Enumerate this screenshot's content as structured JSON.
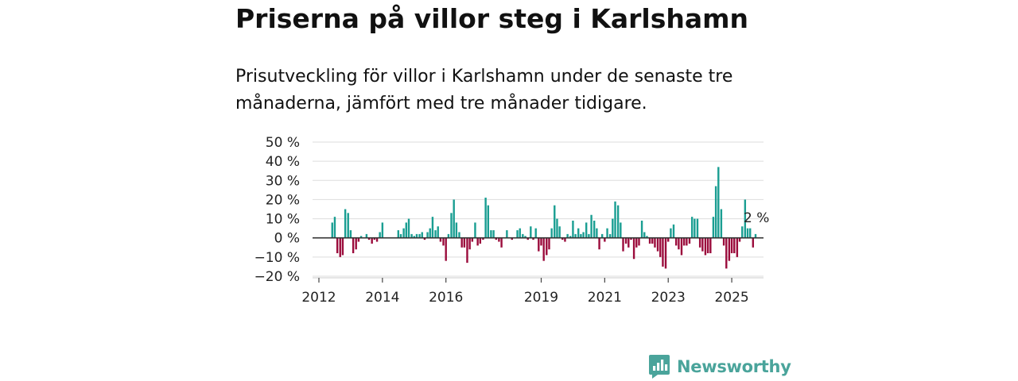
{
  "title": "Priserna på villor steg i Karlshamn",
  "subtitle": "Prisutveckling för villor i Karlshamn under de senaste tre månaderna, jämfört med tre månader tidigare.",
  "brand": {
    "name": "Newsworthy",
    "color": "#4aa49b"
  },
  "colors": {
    "positive": "#1a9e92",
    "negative": "#9b0c3c",
    "grid": "#dddddd",
    "zero_line": "#333333"
  },
  "chart_data": {
    "type": "bar",
    "title": "Priserna på villor steg i Karlshamn",
    "xlabel": "",
    "ylabel": "",
    "y_unit": "%",
    "ylim": [
      -20,
      50
    ],
    "y_ticks": [
      50,
      40,
      30,
      20,
      10,
      0,
      -10,
      -20
    ],
    "y_tick_labels": [
      "50 %",
      "40 %",
      "30 %",
      "20 %",
      "10 %",
      "0 %",
      "−10 %",
      "−20 %"
    ],
    "x_range": [
      2011.8,
      2026.0
    ],
    "x_ticks": [
      2012,
      2014,
      2016,
      2019,
      2021,
      2023,
      2025
    ],
    "x_tick_labels": [
      "2012",
      "2014",
      "2016",
      "2019",
      "2021",
      "2023",
      "2025"
    ],
    "last_value_label": "2 %",
    "series": [
      {
        "name": "Prisutveckling villor Karlshamn",
        "points": [
          {
            "x": 2012.42,
            "v": 8
          },
          {
            "x": 2012.5,
            "v": 11
          },
          {
            "x": 2012.58,
            "v": -8
          },
          {
            "x": 2012.67,
            "v": -10
          },
          {
            "x": 2012.75,
            "v": -9
          },
          {
            "x": 2012.83,
            "v": 15
          },
          {
            "x": 2012.92,
            "v": 13
          },
          {
            "x": 2013.0,
            "v": 4
          },
          {
            "x": 2013.08,
            "v": -8
          },
          {
            "x": 2013.17,
            "v": -6
          },
          {
            "x": 2013.25,
            "v": -2
          },
          {
            "x": 2013.33,
            "v": 1
          },
          {
            "x": 2013.5,
            "v": 2
          },
          {
            "x": 2013.58,
            "v": -1
          },
          {
            "x": 2013.67,
            "v": -3
          },
          {
            "x": 2013.75,
            "v": -1
          },
          {
            "x": 2013.83,
            "v": -2
          },
          {
            "x": 2013.92,
            "v": 3
          },
          {
            "x": 2014.0,
            "v": 8
          },
          {
            "x": 2014.5,
            "v": 4
          },
          {
            "x": 2014.58,
            "v": 2
          },
          {
            "x": 2014.67,
            "v": 5
          },
          {
            "x": 2014.75,
            "v": 8
          },
          {
            "x": 2014.83,
            "v": 10
          },
          {
            "x": 2014.92,
            "v": 2
          },
          {
            "x": 2015.0,
            "v": 1
          },
          {
            "x": 2015.08,
            "v": 2
          },
          {
            "x": 2015.17,
            "v": 2
          },
          {
            "x": 2015.25,
            "v": 3
          },
          {
            "x": 2015.33,
            "v": -1
          },
          {
            "x": 2015.42,
            "v": 3
          },
          {
            "x": 2015.5,
            "v": 5
          },
          {
            "x": 2015.58,
            "v": 11
          },
          {
            "x": 2015.67,
            "v": 4
          },
          {
            "x": 2015.75,
            "v": 6
          },
          {
            "x": 2015.83,
            "v": -2
          },
          {
            "x": 2015.92,
            "v": -4
          },
          {
            "x": 2016.0,
            "v": -12
          },
          {
            "x": 2016.08,
            "v": 2
          },
          {
            "x": 2016.17,
            "v": 13
          },
          {
            "x": 2016.25,
            "v": 20
          },
          {
            "x": 2016.33,
            "v": 8
          },
          {
            "x": 2016.42,
            "v": 3
          },
          {
            "x": 2016.5,
            "v": -5
          },
          {
            "x": 2016.58,
            "v": -5
          },
          {
            "x": 2016.67,
            "v": -13
          },
          {
            "x": 2016.75,
            "v": -6
          },
          {
            "x": 2016.83,
            "v": -2
          },
          {
            "x": 2016.92,
            "v": 8
          },
          {
            "x": 2017.0,
            "v": -4
          },
          {
            "x": 2017.08,
            "v": -3
          },
          {
            "x": 2017.17,
            "v": -1
          },
          {
            "x": 2017.25,
            "v": 21
          },
          {
            "x": 2017.33,
            "v": 17
          },
          {
            "x": 2017.42,
            "v": 4
          },
          {
            "x": 2017.5,
            "v": 4
          },
          {
            "x": 2017.58,
            "v": -1
          },
          {
            "x": 2017.67,
            "v": -2
          },
          {
            "x": 2017.75,
            "v": -5
          },
          {
            "x": 2017.92,
            "v": 4
          },
          {
            "x": 2018.08,
            "v": -1
          },
          {
            "x": 2018.25,
            "v": 4
          },
          {
            "x": 2018.33,
            "v": 5
          },
          {
            "x": 2018.42,
            "v": 2
          },
          {
            "x": 2018.5,
            "v": 1
          },
          {
            "x": 2018.58,
            "v": -1
          },
          {
            "x": 2018.67,
            "v": 6
          },
          {
            "x": 2018.75,
            "v": -1
          },
          {
            "x": 2018.83,
            "v": 5
          },
          {
            "x": 2018.92,
            "v": -7
          },
          {
            "x": 2019.0,
            "v": -4
          },
          {
            "x": 2019.08,
            "v": -12
          },
          {
            "x": 2019.17,
            "v": -9
          },
          {
            "x": 2019.25,
            "v": -6
          },
          {
            "x": 2019.33,
            "v": 5
          },
          {
            "x": 2019.42,
            "v": 17
          },
          {
            "x": 2019.5,
            "v": 10
          },
          {
            "x": 2019.58,
            "v": 6
          },
          {
            "x": 2019.67,
            "v": -1
          },
          {
            "x": 2019.75,
            "v": -2
          },
          {
            "x": 2019.83,
            "v": 2
          },
          {
            "x": 2019.92,
            "v": 1
          },
          {
            "x": 2020.0,
            "v": 9
          },
          {
            "x": 2020.08,
            "v": 2
          },
          {
            "x": 2020.17,
            "v": 5
          },
          {
            "x": 2020.25,
            "v": 2
          },
          {
            "x": 2020.33,
            "v": 3
          },
          {
            "x": 2020.42,
            "v": 8
          },
          {
            "x": 2020.5,
            "v": 2
          },
          {
            "x": 2020.58,
            "v": 12
          },
          {
            "x": 2020.67,
            "v": 9
          },
          {
            "x": 2020.75,
            "v": 5
          },
          {
            "x": 2020.83,
            "v": -6
          },
          {
            "x": 2020.92,
            "v": 2
          },
          {
            "x": 2021.0,
            "v": -2
          },
          {
            "x": 2021.08,
            "v": 5
          },
          {
            "x": 2021.17,
            "v": 2
          },
          {
            "x": 2021.25,
            "v": 10
          },
          {
            "x": 2021.33,
            "v": 19
          },
          {
            "x": 2021.42,
            "v": 17
          },
          {
            "x": 2021.5,
            "v": 8
          },
          {
            "x": 2021.58,
            "v": -7
          },
          {
            "x": 2021.67,
            "v": -3
          },
          {
            "x": 2021.75,
            "v": -5
          },
          {
            "x": 2021.83,
            "v": -1
          },
          {
            "x": 2021.92,
            "v": -11
          },
          {
            "x": 2022.0,
            "v": -5
          },
          {
            "x": 2022.08,
            "v": -4
          },
          {
            "x": 2022.17,
            "v": 9
          },
          {
            "x": 2022.25,
            "v": 3
          },
          {
            "x": 2022.33,
            "v": 1
          },
          {
            "x": 2022.42,
            "v": -3
          },
          {
            "x": 2022.5,
            "v": -3
          },
          {
            "x": 2022.58,
            "v": -5
          },
          {
            "x": 2022.67,
            "v": -7
          },
          {
            "x": 2022.75,
            "v": -10
          },
          {
            "x": 2022.83,
            "v": -15
          },
          {
            "x": 2022.92,
            "v": -16
          },
          {
            "x": 2023.0,
            "v": -2
          },
          {
            "x": 2023.08,
            "v": 5
          },
          {
            "x": 2023.17,
            "v": 7
          },
          {
            "x": 2023.25,
            "v": -4
          },
          {
            "x": 2023.33,
            "v": -6
          },
          {
            "x": 2023.42,
            "v": -9
          },
          {
            "x": 2023.5,
            "v": -4
          },
          {
            "x": 2023.58,
            "v": -4
          },
          {
            "x": 2023.67,
            "v": -3
          },
          {
            "x": 2023.75,
            "v": 11
          },
          {
            "x": 2023.83,
            "v": 10
          },
          {
            "x": 2023.92,
            "v": 10
          },
          {
            "x": 2024.0,
            "v": -5
          },
          {
            "x": 2024.08,
            "v": -7
          },
          {
            "x": 2024.17,
            "v": -9
          },
          {
            "x": 2024.25,
            "v": -8
          },
          {
            "x": 2024.33,
            "v": -8
          },
          {
            "x": 2024.42,
            "v": 11
          },
          {
            "x": 2024.5,
            "v": 27
          },
          {
            "x": 2024.58,
            "v": 37
          },
          {
            "x": 2024.67,
            "v": 15
          },
          {
            "x": 2024.75,
            "v": -4
          },
          {
            "x": 2024.83,
            "v": -16
          },
          {
            "x": 2024.92,
            "v": -12
          },
          {
            "x": 2025.0,
            "v": -8
          },
          {
            "x": 2025.08,
            "v": -8
          },
          {
            "x": 2025.17,
            "v": -10
          },
          {
            "x": 2025.25,
            "v": -2
          },
          {
            "x": 2025.33,
            "v": 6
          },
          {
            "x": 2025.42,
            "v": 20
          },
          {
            "x": 2025.5,
            "v": 5
          },
          {
            "x": 2025.58,
            "v": 5
          },
          {
            "x": 2025.67,
            "v": -5
          },
          {
            "x": 2025.75,
            "v": 2
          }
        ]
      }
    ]
  }
}
